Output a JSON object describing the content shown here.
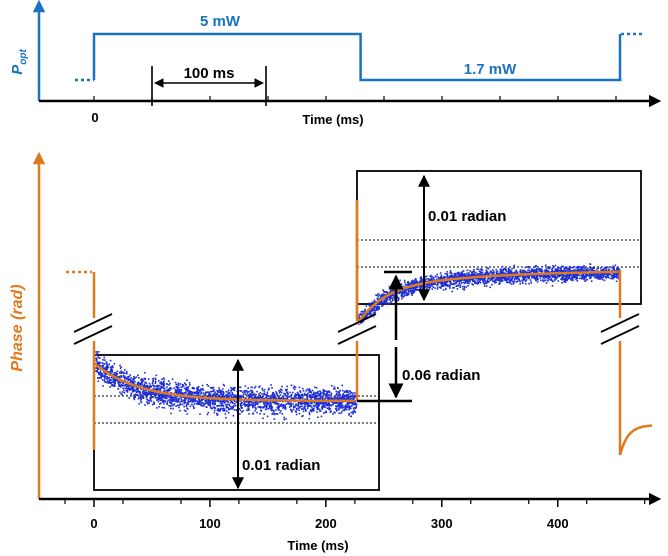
{
  "chart_data": [
    {
      "type": "line",
      "ylabel_main": "P",
      "ylabel_sub": "opt",
      "xlabel": "Time (ms)",
      "tick_labels": [
        "0"
      ],
      "series": [
        {
          "x": [
            0,
            230,
            230,
            455
          ],
          "y": [
            5,
            5,
            1.7,
            1.7
          ]
        }
      ],
      "annotations": {
        "high_level": "5 mW",
        "low_level": "1.7 mW",
        "duration": "100 ms"
      },
      "colors": {
        "signal": "#1a72c0",
        "axis": "#1a72c0"
      }
    },
    {
      "type": "scatter",
      "ylabel": "Phase (rad)",
      "xlabel": "Time (ms)",
      "xlim": [
        -30,
        490
      ],
      "xticks": [
        "0",
        "100",
        "200",
        "300",
        "400"
      ],
      "xtick_values": [
        0,
        100,
        200,
        300,
        400
      ],
      "annotations": {
        "step": "0.06 radian",
        "scale_low": "0.01 radian",
        "scale_high": "0.01 radian"
      },
      "colors": {
        "fit": "#e07a1f",
        "points": "#1f2fd6",
        "axis": "#e07a1f",
        "bottom_axis": "#000000"
      }
    }
  ]
}
